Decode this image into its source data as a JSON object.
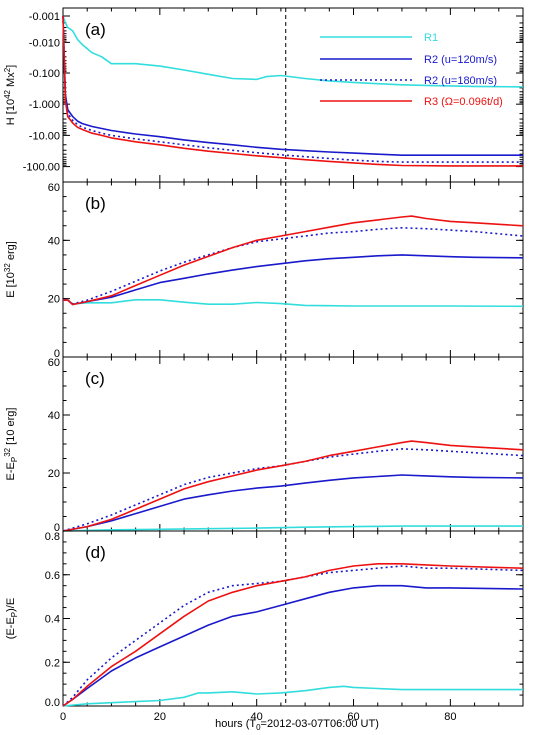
{
  "figure": {
    "xlabel": "hours (T",
    "xlabel_sub": "0",
    "xlabel_rest": "=2012-03-07T06:00 UT)"
  },
  "legend": [
    {
      "label": "R1",
      "color": "#33dddd",
      "style": "solid"
    },
    {
      "label": "R2 (u=120m/s)",
      "color": "#1a1acc",
      "style": "solid"
    },
    {
      "label": "R2 (u=180m/s)",
      "color": "#1a1acc",
      "style": "dotted"
    },
    {
      "label": "R3 (Ω=0.096t/d)",
      "color": "#ee1111",
      "style": "solid"
    }
  ],
  "chart_data": [
    {
      "type": "line",
      "panel": "(a)",
      "ylabel": "H [10",
      "ylabel_sup": "42",
      "ylabel_rest": " Mx",
      "ylabel_sup2": "2",
      "ylabel_end": "]",
      "yscale": "symlog-negative",
      "ylim": [
        -0.001,
        -200
      ],
      "yticks": [
        "-0.001",
        "-0.010",
        "-0.100",
        "-1.000",
        "-10.00",
        "-100.00"
      ],
      "xlim": [
        0,
        95
      ],
      "xticks": [
        "0",
        "20",
        "40",
        "60",
        "80"
      ],
      "vline_x": 46,
      "series": [
        {
          "name": "R1",
          "color": "#33dddd",
          "style": "solid",
          "x": [
            0,
            0.5,
            1,
            2,
            3,
            4,
            6,
            8,
            10,
            15,
            20,
            25,
            30,
            35,
            40,
            42,
            45,
            50,
            55,
            60,
            65,
            70,
            75,
            80,
            85,
            95
          ],
          "y": [
            -0.001,
            -0.002,
            -0.003,
            -0.004,
            -0.008,
            -0.012,
            -0.022,
            -0.03,
            -0.05,
            -0.05,
            -0.06,
            -0.08,
            -0.11,
            -0.15,
            -0.16,
            -0.13,
            -0.12,
            -0.15,
            -0.18,
            -0.2,
            -0.22,
            -0.24,
            -0.25,
            -0.26,
            -0.27,
            -0.28
          ]
        },
        {
          "name": "R2 (u=120m/s)",
          "color": "#1a1acc",
          "style": "solid",
          "x": [
            0,
            0.5,
            1,
            2,
            3,
            4,
            6,
            8,
            10,
            15,
            20,
            25,
            30,
            35,
            40,
            45,
            50,
            55,
            60,
            65,
            70,
            80,
            95
          ],
          "y": [
            -0.001,
            -0.5,
            -1.5,
            -2.5,
            -3.5,
            -4.2,
            -5.2,
            -6,
            -7,
            -9,
            -11,
            -14,
            -17,
            -20,
            -24,
            -28,
            -31,
            -34,
            -37,
            -40,
            -43,
            -43,
            -43
          ]
        },
        {
          "name": "R2 (u=180m/s)",
          "color": "#1a1acc",
          "style": "dotted",
          "x": [
            0,
            0.5,
            1,
            2,
            3,
            4,
            6,
            8,
            10,
            15,
            20,
            25,
            30,
            35,
            40,
            45,
            50,
            55,
            60,
            65,
            70,
            80,
            95
          ],
          "y": [
            -0.001,
            -0.7,
            -2,
            -3.3,
            -4.5,
            -5.5,
            -7,
            -8.5,
            -10,
            -13,
            -16,
            -20,
            -25,
            -30,
            -36,
            -42,
            -48,
            -55,
            -62,
            -68,
            -72,
            -72,
            -72
          ]
        },
        {
          "name": "R3 (Ω=0.096t/d)",
          "color": "#ee1111",
          "style": "solid",
          "x": [
            0,
            0.5,
            1,
            2,
            3,
            4,
            6,
            8,
            10,
            15,
            20,
            25,
            30,
            35,
            40,
            45,
            50,
            55,
            60,
            65,
            70,
            80,
            95
          ],
          "y": [
            -0.001,
            -0.8,
            -2.5,
            -4,
            -5.5,
            -6.5,
            -8.5,
            -10,
            -12,
            -16,
            -20,
            -26,
            -32,
            -38,
            -45,
            -52,
            -60,
            -68,
            -76,
            -85,
            -92,
            -95,
            -95
          ]
        }
      ]
    },
    {
      "type": "line",
      "panel": "(b)",
      "ylabel": "E [10",
      "ylabel_sup": "32",
      "ylabel_rest": " erg]",
      "ylim": [
        0,
        60
      ],
      "yticks": [
        "0",
        "20",
        "40",
        "60"
      ],
      "xlim": [
        0,
        95
      ],
      "vline_x": 46,
      "series": [
        {
          "name": "R1",
          "color": "#33dddd",
          "style": "solid",
          "x": [
            0,
            1,
            2,
            5,
            10,
            15,
            20,
            25,
            30,
            35,
            40,
            45,
            50,
            55,
            60,
            70,
            80,
            95
          ],
          "y": [
            19.5,
            19.5,
            18.2,
            18.6,
            18.6,
            19.6,
            19.6,
            18.8,
            18.1,
            18.1,
            18.7,
            18.3,
            17.7,
            17.6,
            17.5,
            17.5,
            17.5,
            17.4
          ]
        },
        {
          "name": "R2 (u=120m/s)",
          "color": "#1a1acc",
          "style": "solid",
          "x": [
            0,
            1,
            2,
            5,
            10,
            15,
            20,
            25,
            30,
            35,
            40,
            45,
            50,
            55,
            60,
            65,
            70,
            75,
            80,
            85,
            95
          ],
          "y": [
            19.5,
            19.5,
            18.0,
            19.0,
            20.5,
            23,
            25.5,
            27,
            28.5,
            29.8,
            31,
            32,
            33,
            33.7,
            34.2,
            34.7,
            35,
            34.7,
            34.4,
            34.2,
            34.0
          ]
        },
        {
          "name": "R2 (u=180m/s)",
          "color": "#1a1acc",
          "style": "dotted",
          "x": [
            0,
            1,
            2,
            5,
            10,
            15,
            20,
            25,
            30,
            35,
            40,
            45,
            50,
            55,
            60,
            65,
            70,
            75,
            80,
            85,
            95
          ],
          "y": [
            19.5,
            19.5,
            18.2,
            19.5,
            22.5,
            26,
            29.5,
            32.5,
            35,
            37.5,
            39.5,
            40.5,
            41.5,
            42.5,
            43,
            43.8,
            44.3,
            44,
            43.5,
            43,
            41.5
          ]
        },
        {
          "name": "R3 (Ω=0.096t/d)",
          "color": "#ee1111",
          "style": "solid",
          "x": [
            0,
            1,
            2,
            5,
            10,
            15,
            20,
            25,
            30,
            35,
            40,
            45,
            50,
            55,
            60,
            65,
            70,
            72,
            75,
            80,
            85,
            95
          ],
          "y": [
            19.5,
            19.5,
            18.0,
            19.0,
            21,
            24.5,
            28,
            31.5,
            34.5,
            37.5,
            40,
            41.5,
            43,
            44.5,
            46,
            47,
            48,
            48.3,
            47.5,
            46.5,
            46,
            45
          ]
        }
      ]
    },
    {
      "type": "line",
      "panel": "(c)",
      "ylabel": "E-E",
      "ylabel_sub": "P",
      "ylabel_rest": " [10",
      "ylabel_sup": "32",
      "ylabel_end": " erg]",
      "ylim": [
        0,
        60
      ],
      "yticks": [
        "0",
        "20",
        "40",
        "60"
      ],
      "xlim": [
        0,
        95
      ],
      "vline_x": 46,
      "series": [
        {
          "name": "R1",
          "color": "#33dddd",
          "style": "solid",
          "x": [
            0,
            5,
            10,
            20,
            30,
            40,
            50,
            60,
            70,
            80,
            95
          ],
          "y": [
            0,
            0.2,
            0.4,
            0.6,
            0.8,
            1.0,
            1.3,
            1.5,
            1.7,
            1.7,
            1.7
          ]
        },
        {
          "name": "R2 (u=120m/s)",
          "color": "#1a1acc",
          "style": "solid",
          "x": [
            0,
            5,
            10,
            15,
            20,
            25,
            30,
            35,
            40,
            45,
            50,
            55,
            60,
            65,
            70,
            75,
            80,
            85,
            95
          ],
          "y": [
            0,
            1.5,
            3.5,
            6,
            8.5,
            11,
            12.5,
            13.8,
            14.8,
            15.5,
            16.5,
            17.5,
            18.3,
            18.8,
            19.3,
            19,
            18.7,
            18.5,
            18.3
          ]
        },
        {
          "name": "R2 (u=180m/s)",
          "color": "#1a1acc",
          "style": "dotted",
          "x": [
            0,
            5,
            10,
            15,
            20,
            25,
            30,
            35,
            40,
            45,
            50,
            55,
            60,
            65,
            70,
            75,
            80,
            85,
            95
          ],
          "y": [
            0,
            2.5,
            5.5,
            9,
            12.5,
            16,
            18.5,
            20,
            21.5,
            22.5,
            24,
            25.5,
            26.5,
            27.5,
            28.3,
            28,
            27.5,
            27,
            26
          ]
        },
        {
          "name": "R3 (Ω=0.096t/d)",
          "color": "#ee1111",
          "style": "solid",
          "x": [
            0,
            5,
            10,
            15,
            20,
            25,
            30,
            35,
            40,
            45,
            50,
            55,
            60,
            65,
            70,
            72,
            75,
            80,
            85,
            95
          ],
          "y": [
            0,
            1.5,
            4,
            7.5,
            11,
            14.5,
            17,
            19,
            21,
            22.5,
            24,
            26,
            27.5,
            29,
            30.5,
            31,
            30.5,
            29.5,
            29,
            28
          ]
        }
      ]
    },
    {
      "type": "line",
      "panel": "(d)",
      "ylabel": "(E-E",
      "ylabel_sub": "P",
      "ylabel_rest": ")/E",
      "ylim": [
        0,
        0.8
      ],
      "yticks": [
        "0.0",
        "0.2",
        "0.4",
        "0.6",
        "0.8"
      ],
      "xlim": [
        0,
        95
      ],
      "xticks": [
        "0",
        "20",
        "40",
        "60",
        "80"
      ],
      "vline_x": 46,
      "series": [
        {
          "name": "R1",
          "color": "#33dddd",
          "style": "solid",
          "x": [
            0,
            5,
            10,
            15,
            20,
            25,
            28,
            30,
            35,
            40,
            45,
            50,
            55,
            58,
            60,
            65,
            70,
            80,
            95
          ],
          "y": [
            0,
            0.01,
            0.015,
            0.02,
            0.025,
            0.04,
            0.06,
            0.06,
            0.065,
            0.055,
            0.06,
            0.07,
            0.085,
            0.09,
            0.085,
            0.08,
            0.075,
            0.075,
            0.075
          ]
        },
        {
          "name": "R2 (u=120m/s)",
          "color": "#1a1acc",
          "style": "solid",
          "x": [
            0,
            2,
            5,
            10,
            15,
            20,
            25,
            30,
            35,
            40,
            45,
            50,
            55,
            60,
            65,
            70,
            75,
            80,
            95
          ],
          "y": [
            0,
            0.03,
            0.08,
            0.16,
            0.22,
            0.27,
            0.32,
            0.37,
            0.41,
            0.43,
            0.46,
            0.49,
            0.52,
            0.54,
            0.55,
            0.55,
            0.54,
            0.54,
            0.535
          ]
        },
        {
          "name": "R2 (u=180m/s)",
          "color": "#1a1acc",
          "style": "dotted",
          "x": [
            0,
            2,
            5,
            10,
            15,
            20,
            25,
            30,
            35,
            40,
            45,
            50,
            55,
            60,
            65,
            70,
            75,
            80,
            95
          ],
          "y": [
            0,
            0.04,
            0.12,
            0.22,
            0.3,
            0.38,
            0.46,
            0.52,
            0.55,
            0.56,
            0.57,
            0.59,
            0.61,
            0.62,
            0.63,
            0.64,
            0.63,
            0.63,
            0.62
          ]
        },
        {
          "name": "R3 (Ω=0.096t/d)",
          "color": "#ee1111",
          "style": "solid",
          "x": [
            0,
            2,
            5,
            10,
            15,
            20,
            25,
            30,
            35,
            40,
            45,
            50,
            55,
            60,
            65,
            70,
            75,
            80,
            95
          ],
          "y": [
            0,
            0.03,
            0.09,
            0.18,
            0.25,
            0.33,
            0.41,
            0.48,
            0.52,
            0.55,
            0.57,
            0.59,
            0.62,
            0.64,
            0.65,
            0.65,
            0.645,
            0.64,
            0.63
          ]
        }
      ]
    }
  ]
}
